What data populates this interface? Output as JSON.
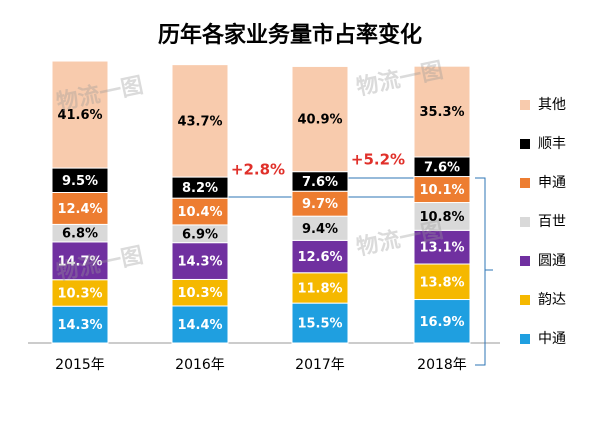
{
  "chart_data": {
    "type": "stacked_bar",
    "title": "历年各家业务量市占率变化",
    "categories": [
      "2015年",
      "2016年",
      "2017年",
      "2018年"
    ],
    "series": [
      {
        "name": "中通",
        "color": "#1f9fe0",
        "values": [
          14.3,
          14.4,
          15.5,
          16.9
        ],
        "value_labels": [
          "14.3%",
          "14.4%",
          "15.5%",
          "16.9%"
        ]
      },
      {
        "name": "韵达",
        "color": "#f5b800",
        "values": [
          10.3,
          10.3,
          11.8,
          13.8
        ],
        "value_labels": [
          "10.3%",
          "10.3%",
          "11.8%",
          "13.8%"
        ]
      },
      {
        "name": "圆通",
        "color": "#7030a0",
        "values": [
          14.7,
          14.3,
          12.6,
          13.1
        ],
        "value_labels": [
          "14.7%",
          "14.3%",
          "12.6%",
          "13.1%"
        ]
      },
      {
        "name": "百世",
        "color": "#d9d9d9",
        "values": [
          6.8,
          6.9,
          9.4,
          10.8
        ],
        "value_labels": [
          "6.8%",
          "6.9%",
          "9.4%",
          "10.8%"
        ]
      },
      {
        "name": "申通",
        "color": "#ed7d31",
        "values": [
          12.4,
          10.4,
          9.7,
          10.1
        ],
        "value_labels": [
          "12.4%",
          "10.4%",
          "9.7%",
          "10.1%"
        ]
      },
      {
        "name": "顺丰",
        "color": "#000000",
        "values": [
          9.5,
          8.2,
          7.6,
          7.6
        ],
        "value_labels": [
          "9.5%",
          "8.2%",
          "7.6%",
          "7.6%"
        ]
      },
      {
        "name": "其他",
        "color": "#f8cbad",
        "values": [
          41.6,
          43.7,
          40.9,
          35.3
        ],
        "value_labels": [
          "41.6%",
          "43.7%",
          "40.9%",
          "35.3%"
        ]
      }
    ],
    "ylim": [
      0,
      110
    ],
    "annotations": [
      "+2.8%",
      "+5.2%"
    ],
    "watermark": "物流一图"
  }
}
